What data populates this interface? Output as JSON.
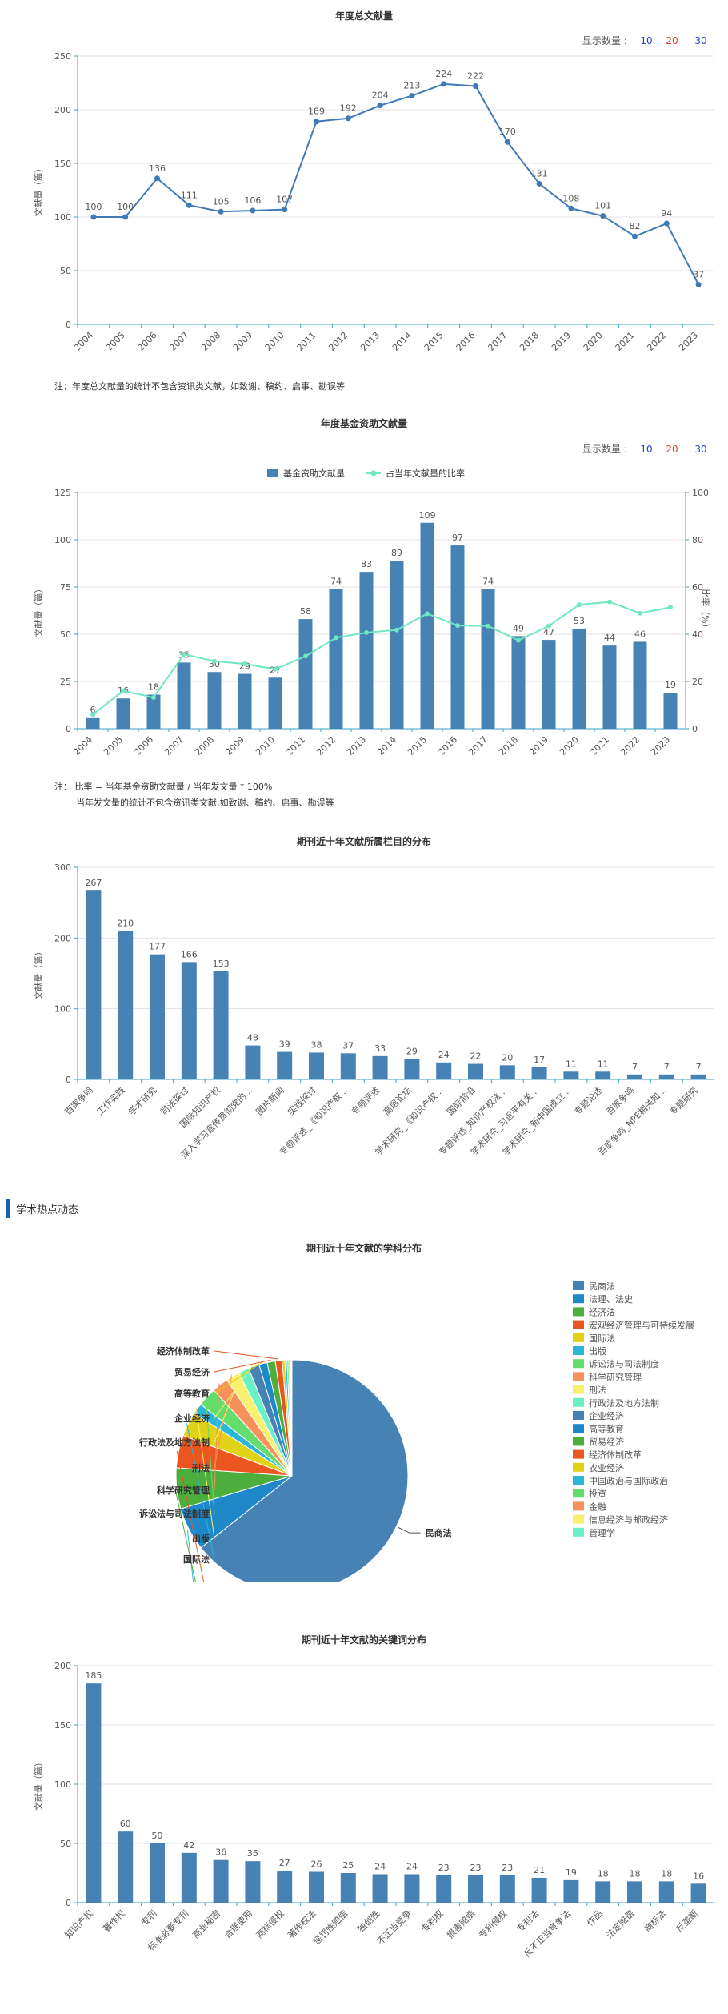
{
  "display_count_label": "显示数量 :",
  "display_count_options": [
    "10",
    "20",
    "30"
  ],
  "display_count_colors": [
    "#1a3fd6",
    "#e53935",
    "#1a3fd6"
  ],
  "note_chart1": "注：年度总文献量的统计不包含资讯类文献，如致谢、稿约、启事、勘误等",
  "note_chart2_line1": "注： 比率 = 当年基金资助文献量 / 当年发文量 * 100%",
  "note_chart2_line2": "当年发文量的统计不包含资讯类文献,如致谢、稿约、启事、勘误等",
  "section_title": "学术热点动态",
  "chart_data": [
    {
      "type": "line",
      "title": "年度总文献量",
      "ylabel": "文献量（篇）",
      "ylim": [
        0,
        250
      ],
      "yticks": [
        0,
        50,
        100,
        150,
        200,
        250
      ],
      "x": [
        "2004",
        "2005",
        "2006",
        "2007",
        "2008",
        "2009",
        "2010",
        "2011",
        "2012",
        "2013",
        "2014",
        "2015",
        "2016",
        "2017",
        "2018",
        "2019",
        "2020",
        "2021",
        "2022",
        "2023"
      ],
      "values": [
        100,
        100,
        136,
        111,
        105,
        106,
        107,
        189,
        192,
        204,
        213,
        224,
        222,
        170,
        131,
        108,
        101,
        82,
        94,
        37
      ],
      "color": "#3f7ab7",
      "grid": true
    },
    {
      "type": "bar",
      "title": "年度基金资助文献量",
      "ylabel": "文献量（篇）",
      "y2label": "比率（%）",
      "ylim": [
        0,
        125
      ],
      "yticks": [
        0,
        25,
        50,
        75,
        100,
        125
      ],
      "y2lim": [
        0,
        100
      ],
      "y2ticks": [
        0,
        20,
        40,
        60,
        80,
        100
      ],
      "categories": [
        "2004",
        "2005",
        "2006",
        "2007",
        "2008",
        "2009",
        "2010",
        "2011",
        "2012",
        "2013",
        "2014",
        "2015",
        "2016",
        "2017",
        "2018",
        "2019",
        "2020",
        "2021",
        "2022",
        "2023"
      ],
      "series": [
        {
          "name": "基金资助文献量",
          "type": "bar",
          "color": "#4682b4",
          "values": [
            6,
            16,
            18,
            35,
            30,
            29,
            27,
            58,
            74,
            83,
            89,
            109,
            97,
            74,
            49,
            47,
            53,
            44,
            46,
            19
          ]
        },
        {
          "name": "占当年文献量的比率",
          "type": "line",
          "axis": "right",
          "color": "#6ee7c2",
          "values": [
            6.0,
            16.0,
            13.2,
            31.5,
            28.6,
            27.4,
            25.2,
            30.7,
            38.5,
            40.7,
            41.8,
            48.7,
            43.7,
            43.5,
            37.4,
            43.5,
            52.5,
            53.7,
            48.9,
            51.4
          ]
        }
      ],
      "legend_position": "top-center",
      "grid": true
    },
    {
      "type": "bar",
      "title": "期刊近十年文献所属栏目的分布",
      "ylabel": "文献量（篇）",
      "ylim": [
        0,
        300
      ],
      "yticks": [
        0,
        100,
        200,
        300
      ],
      "categories": [
        "百家争鸣",
        "工作实践",
        "学术研究",
        "司法探讨",
        "国际知识产权",
        "深入学习宣传贯彻党的...",
        "图片新闻",
        "实践探讨",
        "专题评述_《知识产权...",
        "专题评述",
        "高层论坛",
        "学术研究_《知识产权...",
        "国际前沿",
        "专题评述_知识产权法...",
        "学术研究_习近平有关...",
        "学术研究_新中国成立...",
        "专题论述",
        "百家争鸣",
        "百家争鸣_NPE相关知...",
        "专题研究"
      ],
      "values": [
        267,
        210,
        177,
        166,
        153,
        48,
        39,
        38,
        37,
        33,
        29,
        24,
        22,
        20,
        17,
        11,
        11,
        7,
        7,
        7
      ],
      "color": "#4682b4",
      "grid": true
    },
    {
      "type": "pie",
      "title": "期刊近十年文献的学科分布",
      "categories": [
        "民商法",
        "法理、法史",
        "经济法",
        "宏观经济管理与可持续发展",
        "国际法",
        "出版",
        "诉讼法与司法制度",
        "科学研究管理",
        "刑法",
        "行政法及地方法制",
        "企业经济",
        "高等教育",
        "贸易经济",
        "经济体制改革",
        "农业经济",
        "中国政治与国际政治",
        "投资",
        "金融",
        "信息经济与邮政经济",
        "管理学"
      ],
      "values": [
        1700,
        160,
        150,
        120,
        90,
        40,
        70,
        60,
        50,
        40,
        40,
        30,
        30,
        25,
        10,
        8,
        6,
        5,
        4,
        3
      ],
      "colors": [
        "#4682b4",
        "#1e88c8",
        "#4caf3c",
        "#ea5520",
        "#e0d214",
        "#2bb5d9",
        "#64dd6d",
        "#f7905a",
        "#f8ef6e",
        "#6aefc6",
        "#4682b4",
        "#1e88c8",
        "#4caf3c",
        "#ea5520",
        "#e0d214",
        "#2bb5d9",
        "#64dd6d",
        "#f7905a",
        "#f8ef6e",
        "#6aefc6"
      ],
      "legend_position": "right",
      "label_colors": [
        "#555555",
        "#2bb5d9",
        "#4caf3c",
        "#ea5520",
        "#2bb5d9",
        "#f8ef6e",
        "#64dd6d",
        "#f7905a",
        "#f7905a",
        "#f8ef6e",
        "#f8ef6e",
        "#e0d214",
        "#ea5520",
        "#ea5520"
      ]
    },
    {
      "type": "bar",
      "title": "期刊近十年文献的关键词分布",
      "ylabel": "文献量（篇）",
      "ylim": [
        0,
        200
      ],
      "yticks": [
        0,
        50,
        100,
        150,
        200
      ],
      "categories": [
        "知识产权",
        "著作权",
        "专利",
        "标准必要专利",
        "商业秘密",
        "合理使用",
        "商标侵权",
        "著作权法",
        "惩罚性赔偿",
        "独创性",
        "不正当竞争",
        "专利权",
        "损害赔偿",
        "专利侵权",
        "专利法",
        "反不正当竞争法",
        "作品",
        "法定赔偿",
        "商标法",
        "反垄断"
      ],
      "values": [
        185,
        60,
        50,
        42,
        36,
        35,
        27,
        26,
        25,
        24,
        24,
        23,
        23,
        23,
        21,
        19,
        18,
        18,
        18,
        16
      ],
      "color": "#4682b4",
      "grid": true
    }
  ]
}
